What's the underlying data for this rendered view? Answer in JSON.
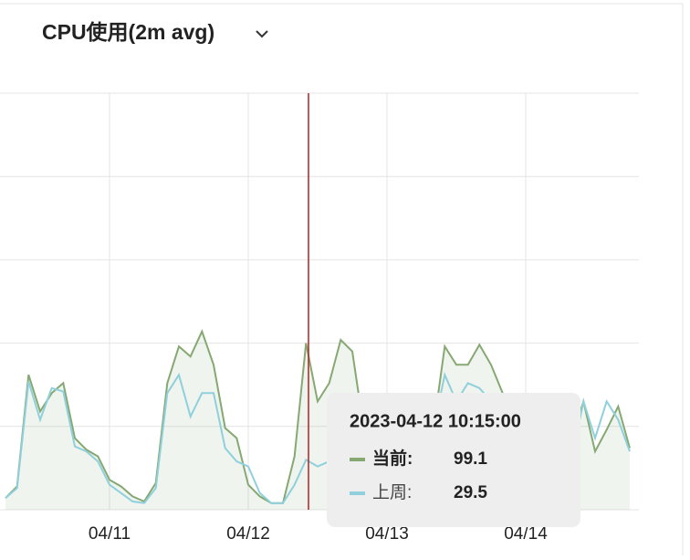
{
  "chart_data": {
    "type": "line",
    "title": "CPU使用(2m avg)",
    "categories": [
      null,
      null,
      null,
      null,
      null,
      null,
      null,
      null,
      null,
      "04/11",
      null,
      null,
      null,
      null,
      null,
      null,
      null,
      null,
      null,
      null,
      null,
      "04/12",
      null,
      null,
      null,
      null,
      null,
      null,
      null,
      null,
      null,
      null,
      null,
      "04/13",
      null,
      null,
      null,
      null,
      null,
      null,
      null,
      null,
      null,
      null,
      null,
      "04/14",
      null,
      null,
      null,
      null,
      null,
      null,
      null,
      null,
      null
    ],
    "series": [
      {
        "name": "当前",
        "color": "#86a872",
        "values": [
          7,
          14,
          81,
          59,
          70,
          76,
          43,
          36,
          32,
          18,
          14,
          8,
          5,
          16,
          76,
          98,
          92,
          107,
          87,
          49,
          43,
          15,
          8,
          4,
          4,
          32,
          100,
          65,
          76,
          102,
          95,
          48,
          32,
          26,
          24,
          22,
          26,
          48,
          98,
          87,
          87,
          99,
          87,
          70,
          40,
          32,
          27,
          25,
          24,
          43,
          65,
          35,
          48,
          62,
          37
        ]
      },
      {
        "name": "上周",
        "color": "#8fd0dc",
        "values": [
          7,
          13,
          77,
          54,
          73,
          71,
          38,
          35,
          29,
          15,
          10,
          5,
          4,
          13,
          70,
          81,
          56,
          70,
          70,
          37,
          29,
          26,
          10,
          4,
          4,
          15,
          30,
          26,
          29,
          35,
          30,
          32,
          29,
          26,
          26,
          25,
          29,
          48,
          81,
          65,
          76,
          73,
          65,
          48,
          35,
          29,
          26,
          25,
          25,
          32,
          65,
          43,
          65,
          54,
          35
        ]
      }
    ],
    "ylim": [
      0,
      250
    ],
    "yticks": [
      0,
      50,
      100,
      150,
      200,
      250
    ],
    "grid": true,
    "tooltip": {
      "title": "2023-04-12 10:15:00",
      "rows": [
        {
          "label": "当前:",
          "value": 99.1
        },
        {
          "label": "上周:",
          "value": 29.5
        }
      ]
    }
  }
}
